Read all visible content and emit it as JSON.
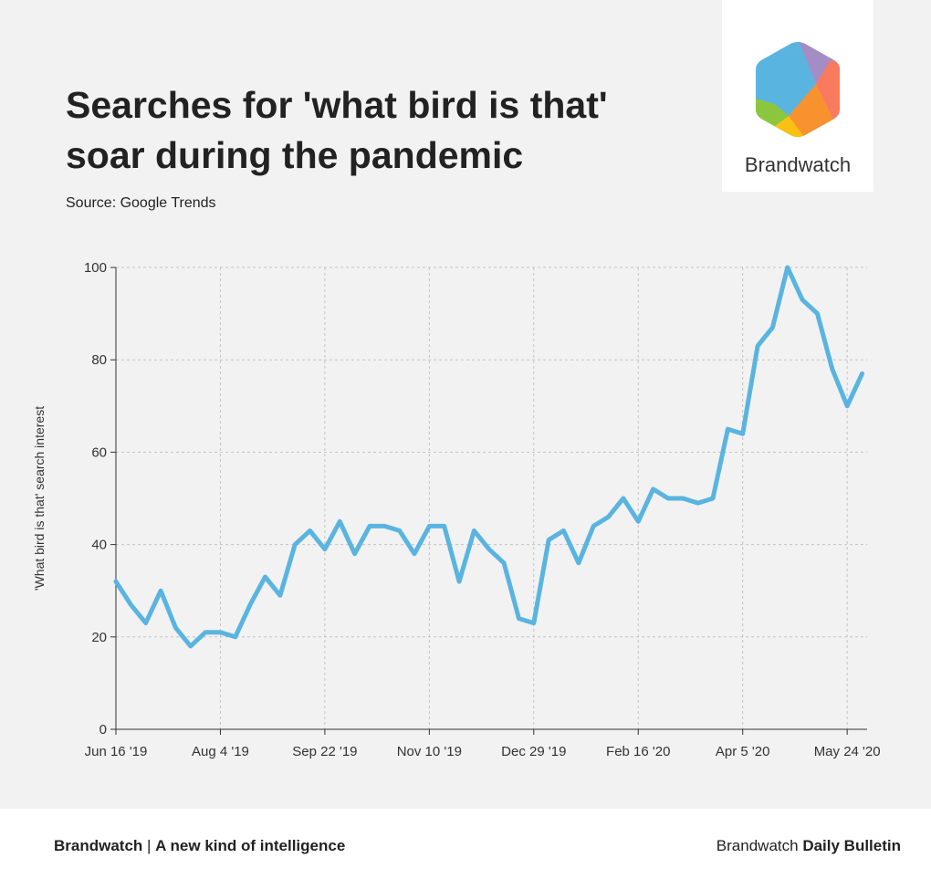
{
  "header": {
    "title_line1": "Searches for 'what bird is that'",
    "title_line2": "soar during the pandemic",
    "source": "Source: Google Trends"
  },
  "logo": {
    "name": "Brandwatch",
    "icon": "brandwatch-hexagon-logo",
    "colors": [
      "#5ab4e0",
      "#a48cc4",
      "#f97a5e",
      "#f8922e",
      "#fcc012",
      "#8cc63f"
    ]
  },
  "footer": {
    "left_brand": "Brandwatch",
    "left_separator": " | ",
    "left_tagline": "A new kind of intelligence",
    "right_brand": "Brandwatch",
    "right_product": "Daily Bulletin"
  },
  "chart_data": {
    "type": "line",
    "title": "Searches for 'what bird is that' soar during the pandemic",
    "xlabel": "",
    "ylabel": "'What bird is that' search interest",
    "ylim": [
      0,
      100
    ],
    "yticks": [
      0,
      20,
      40,
      60,
      80,
      100
    ],
    "xtick_labels": [
      "Jun 16 '19",
      "Aug 4 '19",
      "Sep 22 '19",
      "Nov 10 '19",
      "Dec 29 '19",
      "Feb 16 '20",
      "Apr 5 '20",
      "May 24 '20"
    ],
    "xtick_week_index": [
      0,
      7,
      14,
      21,
      28,
      35,
      42,
      49
    ],
    "grid": true,
    "line_color": "#5ab4e0",
    "series": [
      {
        "values": [
          32,
          27,
          23,
          30,
          22,
          18,
          21,
          21,
          20,
          27,
          33,
          29,
          40,
          43,
          39,
          45,
          38,
          44,
          44,
          43,
          38,
          44,
          44,
          32,
          43,
          39,
          36,
          24,
          23,
          41,
          43,
          36,
          44,
          46,
          50,
          45,
          52,
          50,
          50,
          49,
          50,
          65,
          64,
          83,
          87,
          100,
          93,
          90,
          78,
          70,
          77
        ]
      }
    ]
  }
}
